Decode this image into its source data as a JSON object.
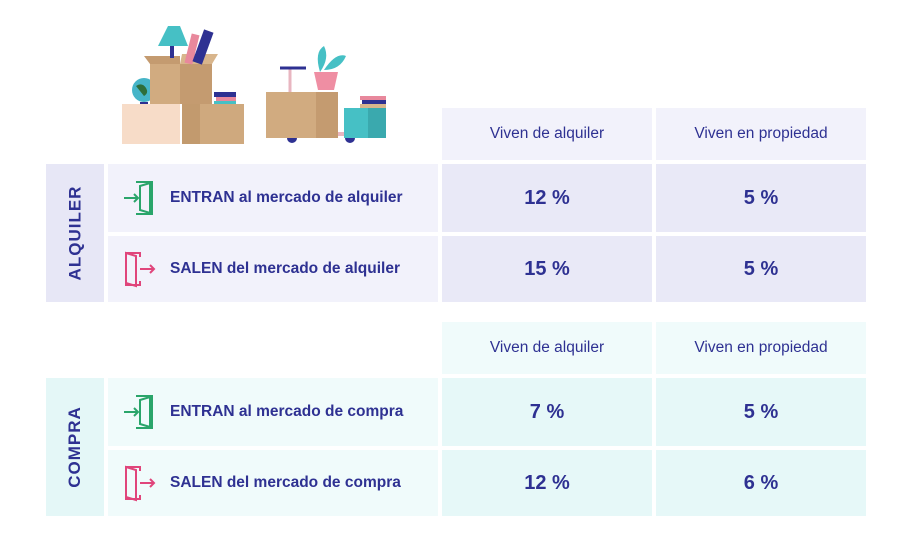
{
  "alquiler": {
    "section_label": "ALQUILER",
    "col_headers": [
      "Viven de alquiler",
      "Viven en propiedad"
    ],
    "rows": [
      {
        "label": "ENTRAN al mercado de alquiler",
        "icon": "door-enter-icon",
        "values": [
          "12 %",
          "5 %"
        ]
      },
      {
        "label": "SALEN del mercado de alquiler",
        "icon": "door-exit-icon",
        "values": [
          "15 %",
          "5 %"
        ]
      }
    ]
  },
  "compra": {
    "section_label": "COMPRA",
    "col_headers": [
      "Viven de alquiler",
      "Viven en propiedad"
    ],
    "rows": [
      {
        "label": "ENTRAN al mercado de compra",
        "icon": "door-enter-icon",
        "values": [
          "7 %",
          "5 %"
        ]
      },
      {
        "label": "SALEN del mercado de compra",
        "icon": "door-exit-icon",
        "values": [
          "12 %",
          "6 %"
        ]
      }
    ]
  },
  "colors": {
    "text": "#2e3192",
    "enter": "#2aa56a",
    "exit": "#e0457b"
  }
}
